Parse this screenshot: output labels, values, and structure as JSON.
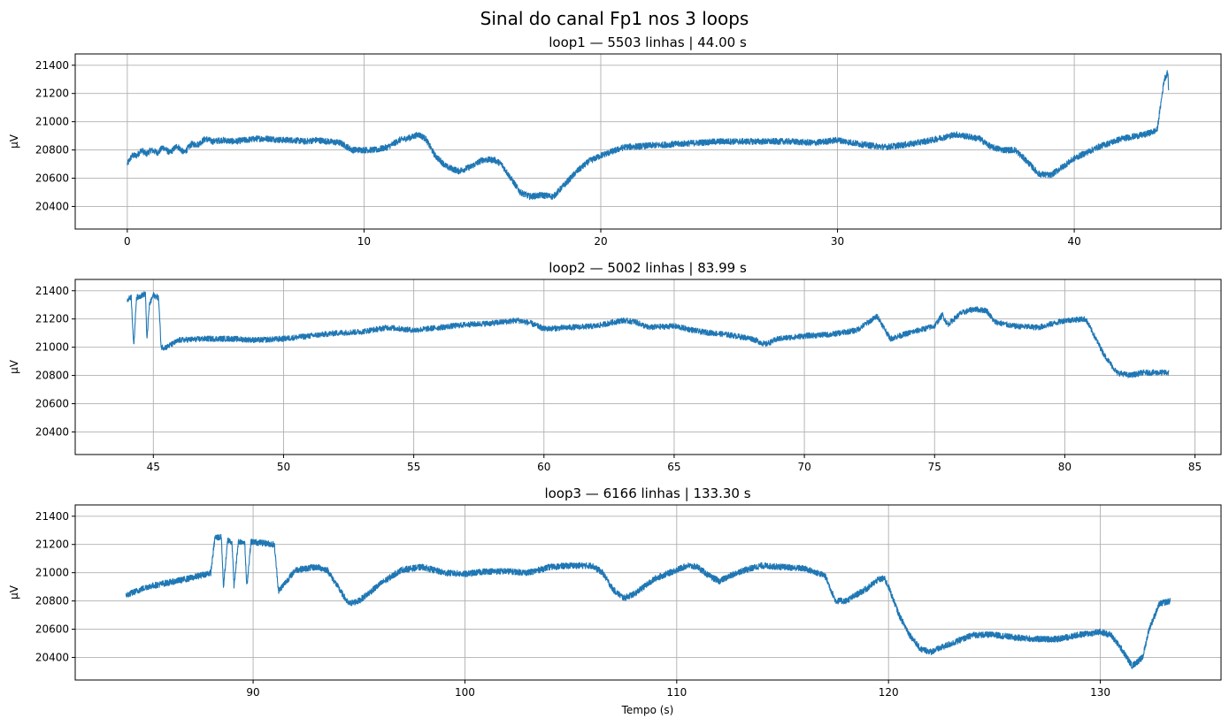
{
  "figure": {
    "suptitle": "Sinal do canal Fp1 nos 3 loops",
    "line_color": "#1f77b4",
    "grid_color": "#b0b0b0"
  },
  "chart_data": [
    {
      "type": "line",
      "title": "loop1 — 5503 linhas | 44.00 s",
      "xlabel": "",
      "ylabel": "μV",
      "xlim": [
        -2.2,
        46.2
      ],
      "ylim": [
        20240,
        21480
      ],
      "xticks": [
        0,
        10,
        20,
        30,
        40
      ],
      "yticks": [
        20400,
        20600,
        20800,
        21000,
        21200,
        21400
      ],
      "grid": true,
      "series": [
        {
          "noise": 22,
          "points": [
            [
              0,
              20700
            ],
            [
              0.2,
              20760
            ],
            [
              0.4,
              20760
            ],
            [
              0.6,
              20800
            ],
            [
              0.8,
              20770
            ],
            [
              1.0,
              20800
            ],
            [
              1.3,
              20780
            ],
            [
              1.5,
              20820
            ],
            [
              1.8,
              20780
            ],
            [
              2.1,
              20830
            ],
            [
              2.4,
              20780
            ],
            [
              2.7,
              20840
            ],
            [
              3.0,
              20840
            ],
            [
              3.3,
              20880
            ],
            [
              3.6,
              20860
            ],
            [
              4.0,
              20870
            ],
            [
              4.5,
              20860
            ],
            [
              5.0,
              20870
            ],
            [
              5.5,
              20880
            ],
            [
              6.0,
              20880
            ],
            [
              6.5,
              20870
            ],
            [
              7.0,
              20870
            ],
            [
              7.5,
              20860
            ],
            [
              8.0,
              20870
            ],
            [
              8.5,
              20860
            ],
            [
              9.0,
              20850
            ],
            [
              9.5,
              20800
            ],
            [
              10.0,
              20800
            ],
            [
              10.5,
              20800
            ],
            [
              11.0,
              20820
            ],
            [
              11.5,
              20870
            ],
            [
              12.0,
              20890
            ],
            [
              12.3,
              20910
            ],
            [
              12.6,
              20880
            ],
            [
              13.0,
              20760
            ],
            [
              13.5,
              20680
            ],
            [
              14.0,
              20650
            ],
            [
              14.5,
              20680
            ],
            [
              15.0,
              20730
            ],
            [
              15.5,
              20730
            ],
            [
              15.8,
              20700
            ],
            [
              16.2,
              20600
            ],
            [
              16.6,
              20500
            ],
            [
              17.0,
              20470
            ],
            [
              17.5,
              20480
            ],
            [
              18.0,
              20470
            ],
            [
              18.5,
              20560
            ],
            [
              19.0,
              20650
            ],
            [
              19.5,
              20720
            ],
            [
              20.0,
              20760
            ],
            [
              21.0,
              20820
            ],
            [
              22.0,
              20830
            ],
            [
              23.0,
              20840
            ],
            [
              24.0,
              20850
            ],
            [
              25.0,
              20860
            ],
            [
              26.0,
              20860
            ],
            [
              27.0,
              20860
            ],
            [
              28.0,
              20860
            ],
            [
              29.0,
              20850
            ],
            [
              30.0,
              20870
            ],
            [
              31.0,
              20840
            ],
            [
              32.0,
              20820
            ],
            [
              33.0,
              20840
            ],
            [
              34.0,
              20870
            ],
            [
              35.0,
              20910
            ],
            [
              36.0,
              20880
            ],
            [
              36.5,
              20820
            ],
            [
              37.0,
              20800
            ],
            [
              37.5,
              20800
            ],
            [
              38.0,
              20720
            ],
            [
              38.5,
              20630
            ],
            [
              39.0,
              20620
            ],
            [
              39.5,
              20680
            ],
            [
              40.0,
              20740
            ],
            [
              41.0,
              20820
            ],
            [
              42.0,
              20880
            ],
            [
              43.0,
              20910
            ],
            [
              43.5,
              20940
            ],
            [
              43.8,
              21300
            ],
            [
              43.95,
              21350
            ],
            [
              44.0,
              21180
            ]
          ]
        }
      ]
    },
    {
      "type": "line",
      "title": "loop2 — 5002 linhas | 83.99 s",
      "xlabel": "",
      "ylabel": "μV",
      "xlim": [
        42.0,
        86.0
      ],
      "ylim": [
        20240,
        21480
      ],
      "xticks": [
        45,
        50,
        55,
        60,
        65,
        70,
        75,
        80,
        85
      ],
      "yticks": [
        20400,
        20600,
        20800,
        21000,
        21200,
        21400
      ],
      "grid": true,
      "series": [
        {
          "noise": 20,
          "points": [
            [
              44.0,
              21330
            ],
            [
              44.15,
              21360
            ],
            [
              44.25,
              21000
            ],
            [
              44.35,
              21350
            ],
            [
              44.7,
              21380
            ],
            [
              44.75,
              21050
            ],
            [
              44.85,
              21300
            ],
            [
              45.0,
              21370
            ],
            [
              45.2,
              21350
            ],
            [
              45.3,
              21000
            ],
            [
              45.5,
              21000
            ],
            [
              46.0,
              21050
            ],
            [
              47.0,
              21060
            ],
            [
              48.0,
              21060
            ],
            [
              49.0,
              21050
            ],
            [
              50.0,
              21060
            ],
            [
              51.0,
              21080
            ],
            [
              52.0,
              21100
            ],
            [
              53.0,
              21110
            ],
            [
              54.0,
              21140
            ],
            [
              55.0,
              21120
            ],
            [
              56.0,
              21140
            ],
            [
              57.0,
              21160
            ],
            [
              58.0,
              21170
            ],
            [
              59.0,
              21190
            ],
            [
              59.5,
              21170
            ],
            [
              60.0,
              21130
            ],
            [
              61.0,
              21140
            ],
            [
              62.0,
              21150
            ],
            [
              63.0,
              21190
            ],
            [
              63.5,
              21180
            ],
            [
              64.0,
              21140
            ],
            [
              65.0,
              21150
            ],
            [
              66.0,
              21110
            ],
            [
              67.0,
              21090
            ],
            [
              68.0,
              21060
            ],
            [
              68.5,
              21020
            ],
            [
              69.0,
              21060
            ],
            [
              70.0,
              21080
            ],
            [
              71.0,
              21090
            ],
            [
              72.0,
              21120
            ],
            [
              72.8,
              21220
            ],
            [
              73.3,
              21060
            ],
            [
              74.0,
              21100
            ],
            [
              75.0,
              21150
            ],
            [
              75.3,
              21230
            ],
            [
              75.5,
              21160
            ],
            [
              76.0,
              21240
            ],
            [
              76.5,
              21270
            ],
            [
              77.0,
              21260
            ],
            [
              77.3,
              21180
            ],
            [
              78.0,
              21150
            ],
            [
              79.0,
              21140
            ],
            [
              80.0,
              21190
            ],
            [
              80.8,
              21200
            ],
            [
              81.5,
              20950
            ],
            [
              82.0,
              20820
            ],
            [
              82.5,
              20800
            ],
            [
              83.0,
              20820
            ],
            [
              84.0,
              20820
            ]
          ]
        }
      ]
    },
    {
      "type": "line",
      "title": "loop3 — 6166 linhas | 133.30 s",
      "xlabel": "Tempo (s)",
      "ylabel": "μV",
      "xlim": [
        81.6,
        135.7
      ],
      "ylim": [
        20240,
        21480
      ],
      "xticks": [
        90,
        100,
        110,
        120,
        130
      ],
      "yticks": [
        20400,
        20600,
        20800,
        21000,
        21200,
        21400
      ],
      "grid": true,
      "series": [
        {
          "noise": 22,
          "points": [
            [
              84.0,
              20840
            ],
            [
              85.0,
              20900
            ],
            [
              86.0,
              20930
            ],
            [
              87.0,
              20960
            ],
            [
              88.0,
              21000
            ],
            [
              88.2,
              21250
            ],
            [
              88.5,
              21250
            ],
            [
              88.6,
              20900
            ],
            [
              88.8,
              21230
            ],
            [
              89.0,
              21220
            ],
            [
              89.1,
              20900
            ],
            [
              89.3,
              21220
            ],
            [
              89.6,
              21220
            ],
            [
              89.7,
              20900
            ],
            [
              89.9,
              21220
            ],
            [
              90.5,
              21210
            ],
            [
              91.0,
              21200
            ],
            [
              91.2,
              20870
            ],
            [
              92.0,
              21020
            ],
            [
              93.0,
              21040
            ],
            [
              93.5,
              21020
            ],
            [
              94.0,
              20900
            ],
            [
              94.5,
              20780
            ],
            [
              95.0,
              20800
            ],
            [
              96.0,
              20920
            ],
            [
              97.0,
              21020
            ],
            [
              98.0,
              21040
            ],
            [
              99.0,
              21000
            ],
            [
              100.0,
              20990
            ],
            [
              101.0,
              21010
            ],
            [
              102.0,
              21010
            ],
            [
              103.0,
              21000
            ],
            [
              104.0,
              21040
            ],
            [
              105.0,
              21050
            ],
            [
              106.0,
              21050
            ],
            [
              106.5,
              21000
            ],
            [
              107.0,
              20880
            ],
            [
              107.5,
              20820
            ],
            [
              108.0,
              20850
            ],
            [
              109.0,
              20960
            ],
            [
              110.0,
              21020
            ],
            [
              110.5,
              21050
            ],
            [
              111.0,
              21040
            ],
            [
              111.5,
              20980
            ],
            [
              112.0,
              20940
            ],
            [
              113.0,
              21010
            ],
            [
              114.0,
              21050
            ],
            [
              115.0,
              21040
            ],
            [
              116.0,
              21030
            ],
            [
              117.0,
              20980
            ],
            [
              117.5,
              20800
            ],
            [
              118.0,
              20800
            ],
            [
              119.0,
              20890
            ],
            [
              119.5,
              20950
            ],
            [
              119.8,
              20960
            ],
            [
              120.0,
              20900
            ],
            [
              120.5,
              20700
            ],
            [
              121.0,
              20560
            ],
            [
              121.5,
              20460
            ],
            [
              122.0,
              20440
            ],
            [
              123.0,
              20500
            ],
            [
              124.0,
              20560
            ],
            [
              125.0,
              20560
            ],
            [
              126.0,
              20540
            ],
            [
              127.0,
              20530
            ],
            [
              128.0,
              20530
            ],
            [
              129.0,
              20560
            ],
            [
              130.0,
              20580
            ],
            [
              130.5,
              20560
            ],
            [
              131.0,
              20460
            ],
            [
              131.5,
              20340
            ],
            [
              132.0,
              20400
            ],
            [
              132.3,
              20600
            ],
            [
              132.8,
              20780
            ],
            [
              133.3,
              20800
            ]
          ]
        }
      ]
    }
  ]
}
